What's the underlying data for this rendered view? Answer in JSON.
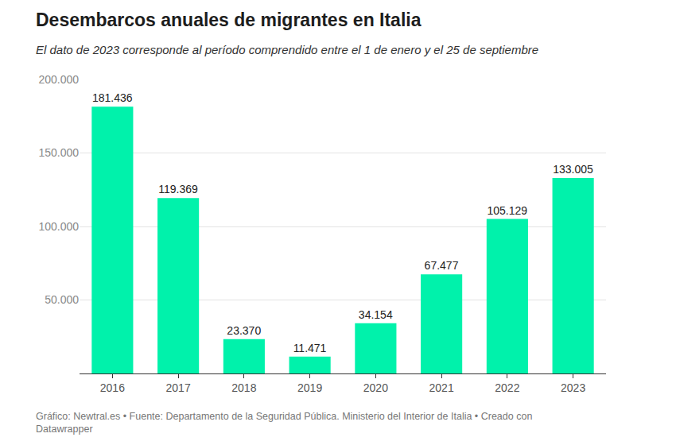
{
  "chart_data": {
    "type": "bar",
    "title": "Desembarcos anuales de migrantes en Italia",
    "subtitle": "El dato de 2023 corresponde al período comprendido entre el 1 de enero y el 25 de septiembre",
    "source": "Gráfico: Newtral.es • Fuente: Departamento de la Seguridad Pública. Ministerio del Interior de Italia • Creado con Datawrapper",
    "categories": [
      "2016",
      "2017",
      "2018",
      "2019",
      "2020",
      "2021",
      "2022",
      "2023"
    ],
    "values": [
      181436,
      119369,
      23370,
      11471,
      34154,
      67477,
      105129,
      133005
    ],
    "value_labels": [
      "181.436",
      "119.369",
      "23.370",
      "11.471",
      "34.154",
      "67.477",
      "105.129",
      "133.005"
    ],
    "color": "#00f2ab",
    "ylim": [
      0,
      200000
    ],
    "yticks": [
      {
        "value": 0,
        "label": ""
      },
      {
        "value": 50000,
        "label": "50.000"
      },
      {
        "value": 100000,
        "label": "100.000"
      },
      {
        "value": 150000,
        "label": "150.000"
      },
      {
        "value": 200000,
        "label": "200.000"
      }
    ],
    "grid": true,
    "data_labels": true
  }
}
